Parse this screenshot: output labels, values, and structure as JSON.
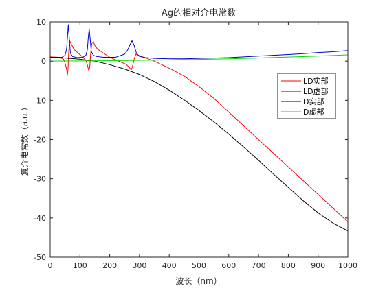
{
  "chart_data": {
    "type": "line",
    "title": "Ag的相对介电常数",
    "xlabel": "波长（nm）",
    "ylabel": "复介电常数（a.u.）",
    "xlim": [
      0,
      1000
    ],
    "ylim": [
      -50,
      10
    ],
    "xticks": [
      0,
      100,
      200,
      300,
      400,
      500,
      600,
      700,
      800,
      900,
      1000
    ],
    "yticks": [
      10,
      0,
      -10,
      -20,
      -30,
      -40,
      -50
    ],
    "grid": false,
    "legend_position": "right",
    "series": [
      {
        "name": "LD实部",
        "color": "#ff0000",
        "points": [
          [
            0,
            1.1
          ],
          [
            30,
            1.0
          ],
          [
            45,
            0.5
          ],
          [
            50,
            -0.5
          ],
          [
            55,
            -2.0
          ],
          [
            58,
            -3.5
          ],
          [
            60,
            -2.0
          ],
          [
            62,
            2.0
          ],
          [
            65,
            5.3
          ],
          [
            70,
            4.5
          ],
          [
            80,
            3.0
          ],
          [
            95,
            2.0
          ],
          [
            110,
            1.0
          ],
          [
            120,
            0.2
          ],
          [
            125,
            -1.0
          ],
          [
            130,
            -2.5
          ],
          [
            133,
            -1.5
          ],
          [
            136,
            2.0
          ],
          [
            140,
            4.5
          ],
          [
            145,
            5.0
          ],
          [
            150,
            4.0
          ],
          [
            160,
            3.0
          ],
          [
            180,
            2.0
          ],
          [
            200,
            1.0
          ],
          [
            220,
            0.3
          ],
          [
            240,
            -0.3
          ],
          [
            255,
            -0.8
          ],
          [
            265,
            -1.5
          ],
          [
            272,
            -2.3
          ],
          [
            276,
            -1.5
          ],
          [
            282,
            0.5
          ],
          [
            288,
            1.8
          ],
          [
            300,
            1.4
          ],
          [
            350,
            0.0
          ],
          [
            400,
            -1.8
          ],
          [
            450,
            -3.8
          ],
          [
            500,
            -6.5
          ],
          [
            550,
            -9.5
          ],
          [
            600,
            -13.0
          ],
          [
            650,
            -16.5
          ],
          [
            700,
            -20.0
          ],
          [
            750,
            -23.5
          ],
          [
            800,
            -27.0
          ],
          [
            850,
            -30.5
          ],
          [
            900,
            -34.0
          ],
          [
            950,
            -37.5
          ],
          [
            1000,
            -41.0
          ]
        ]
      },
      {
        "name": "LD虚部",
        "color": "#0000cc",
        "points": [
          [
            0,
            1.0
          ],
          [
            40,
            1.0
          ],
          [
            50,
            1.5
          ],
          [
            55,
            3.0
          ],
          [
            58,
            6.0
          ],
          [
            61,
            9.3
          ],
          [
            64,
            6.0
          ],
          [
            68,
            2.0
          ],
          [
            75,
            1.2
          ],
          [
            90,
            0.9
          ],
          [
            110,
            1.0
          ],
          [
            120,
            1.5
          ],
          [
            125,
            3.0
          ],
          [
            128,
            6.0
          ],
          [
            131,
            8.3
          ],
          [
            134,
            6.0
          ],
          [
            138,
            2.5
          ],
          [
            145,
            1.5
          ],
          [
            155,
            1.2
          ],
          [
            180,
            1.0
          ],
          [
            220,
            1.0
          ],
          [
            250,
            1.8
          ],
          [
            260,
            2.8
          ],
          [
            268,
            4.2
          ],
          [
            275,
            5.2
          ],
          [
            282,
            4.0
          ],
          [
            290,
            2.0
          ],
          [
            300,
            1.2
          ],
          [
            320,
            0.9
          ],
          [
            350,
            0.7
          ],
          [
            400,
            0.6
          ],
          [
            450,
            0.6
          ],
          [
            500,
            0.7
          ],
          [
            550,
            0.8
          ],
          [
            600,
            0.9
          ],
          [
            650,
            1.1
          ],
          [
            700,
            1.3
          ],
          [
            750,
            1.5
          ],
          [
            800,
            1.7
          ],
          [
            850,
            1.9
          ],
          [
            900,
            2.2
          ],
          [
            950,
            2.4
          ],
          [
            1000,
            2.7
          ]
        ]
      },
      {
        "name": "D实部",
        "color": "#000000",
        "points": [
          [
            0,
            1.0
          ],
          [
            50,
            0.8
          ],
          [
            100,
            0.5
          ],
          [
            150,
            0.0
          ],
          [
            200,
            -0.9
          ],
          [
            250,
            -2.0
          ],
          [
            300,
            -3.4
          ],
          [
            350,
            -5.2
          ],
          [
            400,
            -7.4
          ],
          [
            450,
            -9.9
          ],
          [
            500,
            -12.6
          ],
          [
            550,
            -15.5
          ],
          [
            600,
            -18.6
          ],
          [
            650,
            -21.9
          ],
          [
            700,
            -25.3
          ],
          [
            750,
            -28.8
          ],
          [
            800,
            -32.2
          ],
          [
            850,
            -35.6
          ],
          [
            900,
            -38.7
          ],
          [
            950,
            -41.3
          ],
          [
            1000,
            -43.3
          ]
        ]
      },
      {
        "name": "D虚部",
        "color": "#00dd00",
        "points": [
          [
            0,
            0.0
          ],
          [
            100,
            0.05
          ],
          [
            200,
            0.1
          ],
          [
            300,
            0.2
          ],
          [
            400,
            0.3
          ],
          [
            500,
            0.45
          ],
          [
            600,
            0.6
          ],
          [
            700,
            0.8
          ],
          [
            800,
            1.05
          ],
          [
            900,
            1.3
          ],
          [
            1000,
            1.6
          ]
        ]
      }
    ]
  }
}
